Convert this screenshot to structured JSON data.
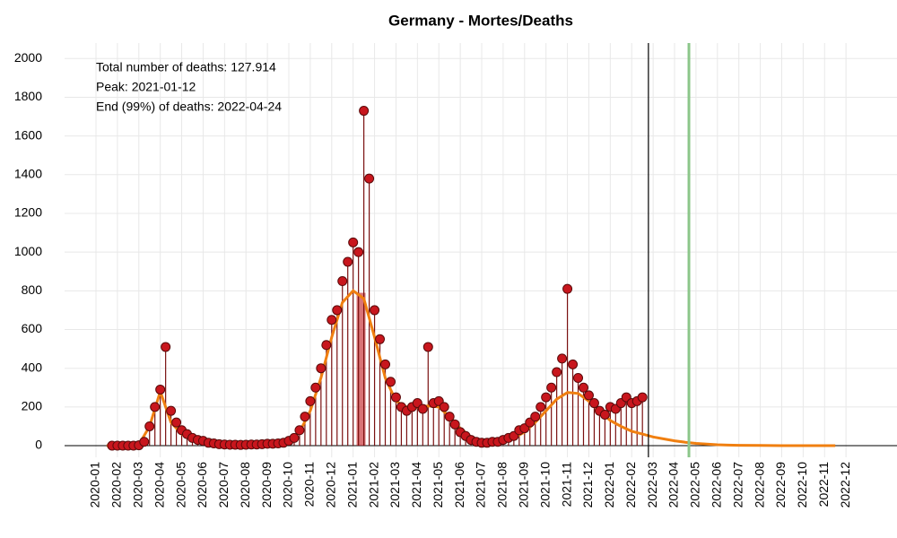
{
  "chart_data": {
    "type": "scatter",
    "title": "Germany - Mortes/Deaths",
    "annotations": [
      {
        "text": "Total number of deaths: 127.914",
        "color": "#000000"
      },
      {
        "text": "Peak: 2021-01-12",
        "color": "#b0121b"
      },
      {
        "text": "End (99%) of deaths: 2022-04-24",
        "color": "#6aaa64"
      }
    ],
    "xlim": [
      -1.465,
      37.38
    ],
    "ylim": [
      -60,
      2080
    ],
    "yticks": [
      0,
      200,
      400,
      600,
      800,
      1000,
      1200,
      1400,
      1600,
      1800,
      2000
    ],
    "xticks": [
      {
        "value": 0,
        "label": "2020-01"
      },
      {
        "value": 1,
        "label": "2020-02"
      },
      {
        "value": 2,
        "label": "2020-03"
      },
      {
        "value": 3,
        "label": "2020-04"
      },
      {
        "value": 4,
        "label": "2020-05"
      },
      {
        "value": 5,
        "label": "2020-06"
      },
      {
        "value": 6,
        "label": "2020-07"
      },
      {
        "value": 7,
        "label": "2020-08"
      },
      {
        "value": 8,
        "label": "2020-09"
      },
      {
        "value": 9,
        "label": "2020-10"
      },
      {
        "value": 10,
        "label": "2020-11"
      },
      {
        "value": 11,
        "label": "2020-12"
      },
      {
        "value": 12,
        "label": "2021-01"
      },
      {
        "value": 13,
        "label": "2021-02"
      },
      {
        "value": 14,
        "label": "2021-03"
      },
      {
        "value": 15,
        "label": "2021-04"
      },
      {
        "value": 16,
        "label": "2021-05"
      },
      {
        "value": 17,
        "label": "2021-06"
      },
      {
        "value": 18,
        "label": "2021-07"
      },
      {
        "value": 19,
        "label": "2021-08"
      },
      {
        "value": 20,
        "label": "2021-09"
      },
      {
        "value": 21,
        "label": "2021-10"
      },
      {
        "value": 22,
        "label": "2021-11"
      },
      {
        "value": 23,
        "label": "2021-12"
      },
      {
        "value": 24,
        "label": "2022-01"
      },
      {
        "value": 25,
        "label": "2022-02"
      },
      {
        "value": 26,
        "label": "2022-03"
      },
      {
        "value": 27,
        "label": "2022-04"
      },
      {
        "value": 28,
        "label": "2022-05"
      },
      {
        "value": 29,
        "label": "2022-06"
      },
      {
        "value": 30,
        "label": "2022-07"
      },
      {
        "value": 31,
        "label": "2022-08"
      },
      {
        "value": 32,
        "label": "2022-09"
      },
      {
        "value": 33,
        "label": "2022-10"
      },
      {
        "value": 34,
        "label": "2022-11"
      },
      {
        "value": 35,
        "label": "2022-12"
      }
    ],
    "grid": true,
    "vlines": [
      {
        "x": 25.78,
        "color": "#000000"
      },
      {
        "x": 27.67,
        "color": "#8cc68a"
      }
    ],
    "peak_bar": {
      "x": 12.37,
      "value": 790,
      "color": "#c0161b"
    },
    "points": {
      "color": "#c8161d",
      "stem_color": "#7a1010",
      "x": [
        0.75,
        1,
        1.25,
        1.5,
        1.75,
        2,
        2.25,
        2.5,
        2.75,
        3,
        3.25,
        3.5,
        3.75,
        4,
        4.25,
        4.5,
        4.75,
        5,
        5.25,
        5.5,
        5.75,
        6,
        6.25,
        6.5,
        6.75,
        7,
        7.25,
        7.5,
        7.75,
        8,
        8.25,
        8.5,
        8.75,
        9,
        9.25,
        9.5,
        9.75,
        10,
        10.25,
        10.5,
        10.75,
        11,
        11.25,
        11.5,
        11.75,
        12,
        12.25,
        12.5,
        12.75,
        13,
        13.25,
        13.5,
        13.75,
        14,
        14.25,
        14.5,
        14.75,
        15,
        15.25,
        15.5,
        15.75,
        16,
        16.25,
        16.5,
        16.75,
        17,
        17.25,
        17.5,
        17.75,
        18,
        18.25,
        18.5,
        18.75,
        19,
        19.25,
        19.5,
        19.75,
        20,
        20.25,
        20.5,
        20.75,
        21,
        21.25,
        21.5,
        21.75,
        22,
        22.25,
        22.5,
        22.75,
        23,
        23.25,
        23.5,
        23.75,
        24,
        24.25,
        24.5,
        24.75,
        25,
        25.25,
        25.5
      ],
      "values": [
        0,
        0,
        0,
        0,
        0,
        2,
        20,
        100,
        200,
        290,
        510,
        180,
        120,
        80,
        60,
        40,
        30,
        25,
        15,
        12,
        8,
        6,
        5,
        5,
        4,
        5,
        6,
        6,
        8,
        10,
        10,
        12,
        15,
        25,
        40,
        80,
        150,
        230,
        300,
        400,
        520,
        650,
        700,
        850,
        950,
        1050,
        1000,
        1730,
        1380,
        700,
        550,
        420,
        330,
        250,
        200,
        180,
        200,
        220,
        190,
        510,
        220,
        230,
        200,
        150,
        110,
        70,
        50,
        30,
        20,
        15,
        15,
        20,
        20,
        30,
        40,
        50,
        80,
        90,
        120,
        150,
        200,
        250,
        300,
        380,
        450,
        810,
        420,
        350,
        300,
        260,
        220,
        180,
        160,
        200,
        190,
        220,
        250,
        220,
        230,
        250
      ]
    },
    "fit": {
      "color": "#f07f10",
      "x": [
        0.5,
        1,
        1.5,
        2,
        2.5,
        3,
        3.5,
        4,
        4.5,
        5,
        5.5,
        6,
        6.5,
        7,
        7.5,
        8,
        8.5,
        9,
        9.5,
        10,
        10.5,
        11,
        11.5,
        12,
        12.5,
        13,
        13.5,
        14,
        14.5,
        15,
        15.5,
        16,
        16.5,
        17,
        17.5,
        18,
        18.5,
        19,
        19.5,
        20,
        20.5,
        21,
        21.5,
        22,
        22.5,
        23,
        23.5,
        24,
        24.5,
        25,
        25.5,
        26,
        26.5,
        27,
        27.5,
        28,
        28.5,
        29,
        29.5,
        30,
        31,
        32,
        33,
        34,
        34.5
      ],
      "values": [
        0,
        0,
        0,
        5,
        100,
        280,
        120,
        60,
        40,
        30,
        20,
        12,
        8,
        6,
        6,
        8,
        12,
        25,
        70,
        180,
        350,
        560,
        740,
        800,
        760,
        560,
        350,
        230,
        200,
        200,
        205,
        200,
        150,
        90,
        45,
        25,
        20,
        25,
        40,
        70,
        120,
        180,
        240,
        275,
        270,
        230,
        180,
        130,
        100,
        75,
        60,
        45,
        35,
        25,
        18,
        12,
        8,
        5,
        3,
        2,
        1,
        0,
        0,
        0,
        0
      ]
    }
  }
}
